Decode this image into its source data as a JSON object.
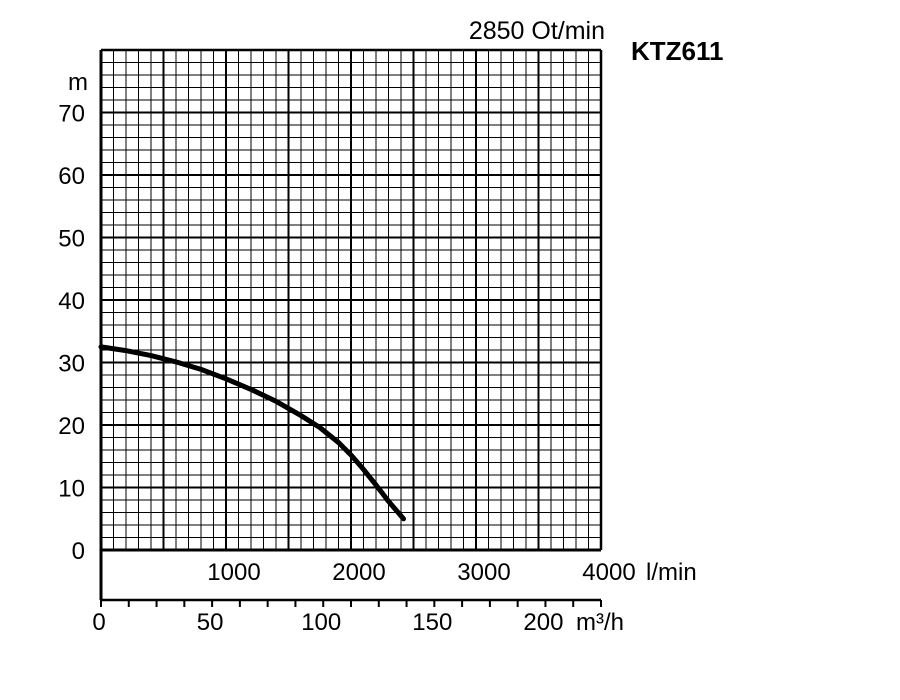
{
  "chart_data": {
    "type": "line",
    "title": "KTZ611",
    "subtitle": "2850 Ot/min",
    "ylabel": "m",
    "xlabel": "l/min",
    "x2label": "m³/h",
    "ylim": [
      0,
      80
    ],
    "xlim": [
      0,
      4000
    ],
    "x2lim": [
      0,
      225
    ],
    "yticks": [
      0,
      10,
      20,
      30,
      40,
      50,
      60,
      70
    ],
    "xticks": [
      1000,
      2000,
      3000,
      4000
    ],
    "x2ticks": [
      0,
      50,
      100,
      150,
      200
    ],
    "grid": true,
    "series": [
      {
        "x": [
          0,
          200,
          400,
          600,
          800,
          1000,
          1200,
          1400,
          1600,
          1750,
          1900,
          2000,
          2100,
          2200,
          2300,
          2420
        ],
        "y": [
          32.5,
          31.9,
          31.1,
          30.1,
          28.9,
          27.4,
          25.7,
          23.8,
          21.5,
          19.6,
          17.2,
          15.2,
          12.9,
          10.4,
          7.8,
          5.0
        ]
      }
    ]
  },
  "colors": {
    "line": "#000000",
    "grid": "#000000",
    "background": "#ffffff"
  }
}
